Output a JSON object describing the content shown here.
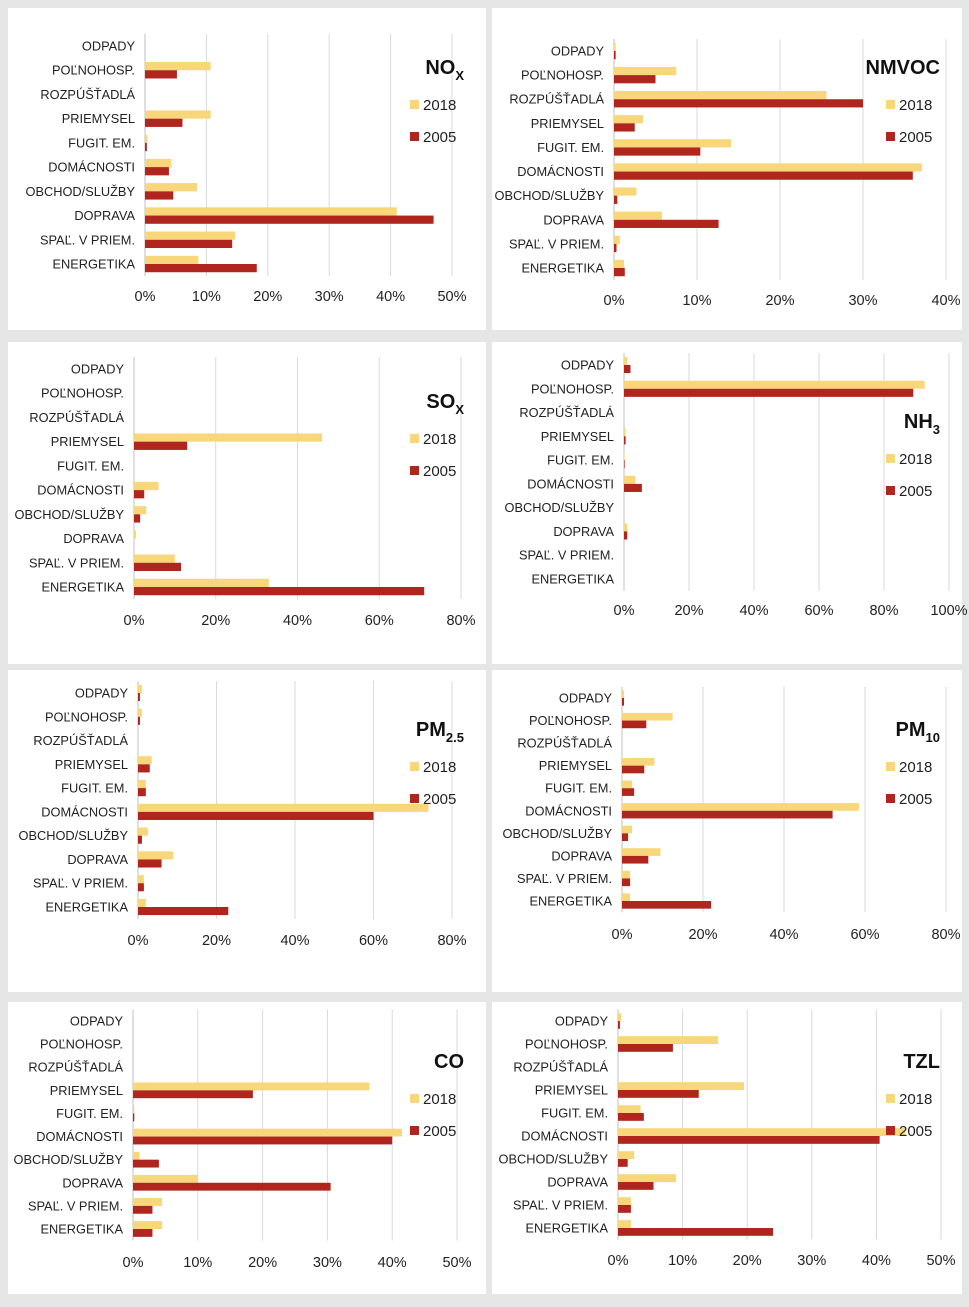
{
  "colors": {
    "background": "#e6e6e6",
    "panel": "#ffffff",
    "series_2018": "#f8d77a",
    "series_2005": "#b0261e",
    "gridline": "#d9d9d9",
    "text": "#222222"
  },
  "chart_data": [
    {
      "type": "bar",
      "orientation": "horizontal",
      "title_main": "NO",
      "title_sub": "X",
      "categories": [
        "ODPADY",
        "POĽNOHOSP.",
        "ROZPÚŠŤADLÁ",
        "PRIEMYSEL",
        "FUGIT. EM.",
        "DOMÁCNOSTI",
        "OBCHOD/SLUŽBY",
        "DOPRAVA",
        "SPAĽ. V PRIEM.",
        "ENERGETIKA"
      ],
      "series": [
        {
          "name": "2018",
          "values": [
            0,
            10.7,
            0,
            10.7,
            0.4,
            4.3,
            8.5,
            41,
            14.7,
            8.7
          ]
        },
        {
          "name": "2005",
          "values": [
            0,
            5.2,
            0,
            6.1,
            0.3,
            3.9,
            4.6,
            47,
            14.2,
            18.2
          ]
        }
      ],
      "xlim": [
        0,
        50
      ],
      "ticks": [
        "0%",
        "10%",
        "20%",
        "30%",
        "40%",
        "50%"
      ],
      "legend": [
        "2018",
        "2005"
      ],
      "legend_position": "right",
      "grid": true
    },
    {
      "type": "bar",
      "orientation": "horizontal",
      "title_main": "NMVOC",
      "title_sub": "",
      "categories": [
        "ODPADY",
        "POĽNOHOSP.",
        "ROZPÚŠŤADLÁ",
        "PRIEMYSEL",
        "FUGIT. EM.",
        "DOMÁCNOSTI",
        "OBCHOD/SLUŽBY",
        "DOPRAVA",
        "SPAĽ. V PRIEM.",
        "ENERGETIKA"
      ],
      "series": [
        {
          "name": "2018",
          "values": [
            0.2,
            7.5,
            25.6,
            3.5,
            14.1,
            37.1,
            2.7,
            5.8,
            0.7,
            1.2
          ]
        },
        {
          "name": "2005",
          "values": [
            0.2,
            5,
            30,
            2.5,
            10.4,
            36,
            0.4,
            12.6,
            0.3,
            1.3
          ]
        }
      ],
      "xlim": [
        0,
        40
      ],
      "ticks": [
        "0%",
        "10%",
        "20%",
        "30%",
        "40%"
      ],
      "legend": [
        "2018",
        "2005"
      ],
      "legend_position": "right",
      "grid": true
    },
    {
      "type": "bar",
      "orientation": "horizontal",
      "title_main": "SO",
      "title_sub": "X",
      "categories": [
        "ODPADY",
        "POĽNOHOSP.",
        "ROZPÚŠŤADLÁ",
        "PRIEMYSEL",
        "FUGIT. EM.",
        "DOMÁCNOSTI",
        "OBCHOD/SLUŽBY",
        "DOPRAVA",
        "SPAĽ. V PRIEM.",
        "ENERGETIKA"
      ],
      "series": [
        {
          "name": "2018",
          "values": [
            0,
            0,
            0,
            46,
            0,
            6,
            3,
            0.5,
            10,
            33
          ]
        },
        {
          "name": "2005",
          "values": [
            0,
            0,
            0,
            13,
            0,
            2.5,
            1.5,
            0,
            11.5,
            71
          ]
        }
      ],
      "xlim": [
        0,
        80
      ],
      "ticks": [
        "0%",
        "20%",
        "40%",
        "60%",
        "80%"
      ],
      "legend": [
        "2018",
        "2005"
      ],
      "legend_position": "right",
      "grid": true
    },
    {
      "type": "bar",
      "orientation": "horizontal",
      "title_main": "NH",
      "title_sub": "3",
      "categories": [
        "ODPADY",
        "POĽNOHOSP.",
        "ROZPÚŠŤADLÁ",
        "PRIEMYSEL",
        "FUGIT. EM.",
        "DOMÁCNOSTI",
        "OBCHOD/SLUŽBY",
        "DOPRAVA",
        "SPAĽ. V PRIEM.",
        "ENERGETIKA"
      ],
      "series": [
        {
          "name": "2018",
          "values": [
            1,
            92.5,
            0,
            0.5,
            0.2,
            3.5,
            0,
            1,
            0,
            0
          ]
        },
        {
          "name": "2005",
          "values": [
            2,
            89,
            0,
            0.5,
            0.2,
            5.5,
            0,
            1,
            0,
            0
          ]
        }
      ],
      "xlim": [
        0,
        100
      ],
      "ticks": [
        "0%",
        "20%",
        "40%",
        "60%",
        "80%",
        "100%"
      ],
      "legend": [
        "2018",
        "2005"
      ],
      "legend_position": "right",
      "grid": true
    },
    {
      "type": "bar",
      "orientation": "horizontal",
      "title_main": "PM",
      "title_sub": "2.5",
      "categories": [
        "ODPADY",
        "POĽNOHOSP.",
        "ROZPÚŠŤADLÁ",
        "PRIEMYSEL",
        "FUGIT. EM.",
        "DOMÁCNOSTI",
        "OBCHOD/SLUŽBY",
        "DOPRAVA",
        "SPAĽ. V PRIEM.",
        "ENERGETIKA"
      ],
      "series": [
        {
          "name": "2018",
          "values": [
            1,
            1,
            0,
            3.5,
            2,
            74,
            2.5,
            9,
            1.5,
            2
          ]
        },
        {
          "name": "2005",
          "values": [
            0.5,
            0.5,
            0,
            3,
            2,
            60,
            1,
            6,
            1.5,
            23
          ]
        }
      ],
      "xlim": [
        0,
        80
      ],
      "ticks": [
        "0%",
        "20%",
        "40%",
        "60%",
        "80%"
      ],
      "legend": [
        "2018",
        "2005"
      ],
      "legend_position": "right",
      "grid": true
    },
    {
      "type": "bar",
      "orientation": "horizontal",
      "title_main": "PM",
      "title_sub": "10",
      "categories": [
        "ODPADY",
        "POĽNOHOSP.",
        "ROZPÚŠŤADLÁ",
        "PRIEMYSEL",
        "FUGIT. EM.",
        "DOMÁCNOSTI",
        "OBCHOD/SLUŽBY",
        "DOPRAVA",
        "SPAĽ. V PRIEM.",
        "ENERGETIKA"
      ],
      "series": [
        {
          "name": "2018",
          "values": [
            0.5,
            12.5,
            0,
            8,
            2.5,
            58.5,
            2.5,
            9.5,
            2,
            2
          ]
        },
        {
          "name": "2005",
          "values": [
            0.5,
            6,
            0,
            5.5,
            3,
            52,
            1.5,
            6.5,
            2,
            22
          ]
        }
      ],
      "xlim": [
        0,
        80
      ],
      "ticks": [
        "0%",
        "20%",
        "40%",
        "60%",
        "80%"
      ],
      "legend": [
        "2018",
        "2005"
      ],
      "legend_position": "right",
      "grid": true
    },
    {
      "type": "bar",
      "orientation": "horizontal",
      "title_main": "CO",
      "title_sub": "",
      "categories": [
        "ODPADY",
        "POĽNOHOSP.",
        "ROZPÚŠŤADLÁ",
        "PRIEMYSEL",
        "FUGIT. EM.",
        "DOMÁCNOSTI",
        "OBCHOD/SLUŽBY",
        "DOPRAVA",
        "SPAĽ. V PRIEM.",
        "ENERGETIKA"
      ],
      "series": [
        {
          "name": "2018",
          "values": [
            0,
            0,
            0,
            36.5,
            0.2,
            41.5,
            1,
            10,
            4.5,
            4.5
          ]
        },
        {
          "name": "2005",
          "values": [
            0,
            0,
            0,
            18.5,
            0.2,
            40,
            4,
            30.5,
            3,
            3
          ]
        }
      ],
      "xlim": [
        0,
        50
      ],
      "ticks": [
        "0%",
        "10%",
        "20%",
        "30%",
        "40%",
        "50%"
      ],
      "legend": [
        "2018",
        "2005"
      ],
      "legend_position": "right",
      "grid": true
    },
    {
      "type": "bar",
      "orientation": "horizontal",
      "title_main": "TZL",
      "title_sub": "",
      "categories": [
        "ODPADY",
        "POĽNOHOSP.",
        "ROZPÚŠŤADLÁ",
        "PRIEMYSEL",
        "FUGIT. EM.",
        "DOMÁCNOSTI",
        "OBCHOD/SLUŽBY",
        "DOPRAVA",
        "SPAĽ. V PRIEM.",
        "ENERGETIKA"
      ],
      "series": [
        {
          "name": "2018",
          "values": [
            0.5,
            15.5,
            0,
            19.5,
            3.5,
            44.5,
            2.5,
            9,
            2,
            2
          ]
        },
        {
          "name": "2005",
          "values": [
            0.3,
            8.5,
            0,
            12.5,
            4,
            40.5,
            1.5,
            5.5,
            2,
            24
          ]
        }
      ],
      "xlim": [
        0,
        50
      ],
      "ticks": [
        "0%",
        "10%",
        "20%",
        "30%",
        "40%",
        "50%"
      ],
      "legend": [
        "2018",
        "2005"
      ],
      "legend_position": "right",
      "grid": true
    }
  ]
}
